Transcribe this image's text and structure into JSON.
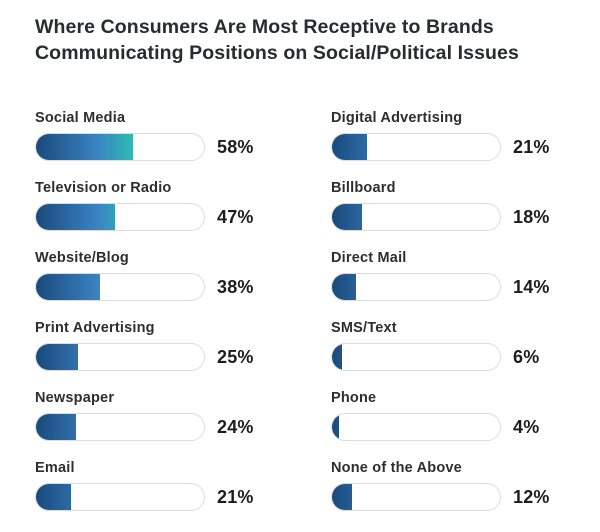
{
  "title": "Where Consumers Are Most Receptive to Brands Communicating Positions on Social/Political Issues",
  "chart_data": {
    "type": "bar",
    "orientation": "horizontal",
    "title": "Where Consumers Are Most Receptive to Brands Communicating Positions on Social/Political Issues",
    "value_unit": "%",
    "xlim": [
      0,
      100
    ],
    "grid": false,
    "legend": "none",
    "layout": {
      "columns": 2,
      "left_column_indices": [
        0,
        1,
        2,
        3,
        4,
        5
      ],
      "right_column_indices": [
        6,
        7,
        8,
        9,
        10,
        11
      ]
    },
    "items": [
      {
        "label": "Social Media",
        "value": 58,
        "display_value": "58%"
      },
      {
        "label": "Television or Radio",
        "value": 47,
        "display_value": "47%"
      },
      {
        "label": "Website/Blog",
        "value": 38,
        "display_value": "38%"
      },
      {
        "label": "Print Advertising",
        "value": 25,
        "display_value": "25%"
      },
      {
        "label": "Newspaper",
        "value": 24,
        "display_value": "24%"
      },
      {
        "label": "Email",
        "value": 21,
        "display_value": "21%"
      },
      {
        "label": "Digital Advertising",
        "value": 21,
        "display_value": "21%"
      },
      {
        "label": "Billboard",
        "value": 18,
        "display_value": "18%"
      },
      {
        "label": "Direct Mail",
        "value": 14,
        "display_value": "14%"
      },
      {
        "label": "SMS/Text",
        "value": 6,
        "display_value": "6%"
      },
      {
        "label": "Phone",
        "value": 4,
        "display_value": "4%"
      },
      {
        "label": "None of the Above",
        "value": 12,
        "display_value": "12%"
      }
    ]
  },
  "colors": {
    "bar_gradient_start": "#1a4a7c",
    "bar_gradient_mid": "#3a82c2",
    "bar_gradient_end": "#2dbab3",
    "track_background": "#ffffff",
    "track_border": "#dcdcdc",
    "title_text": "#272c30",
    "label_text": "#2e2e2e",
    "value_text": "#1d1d1d",
    "page_background": "#ffffff"
  }
}
